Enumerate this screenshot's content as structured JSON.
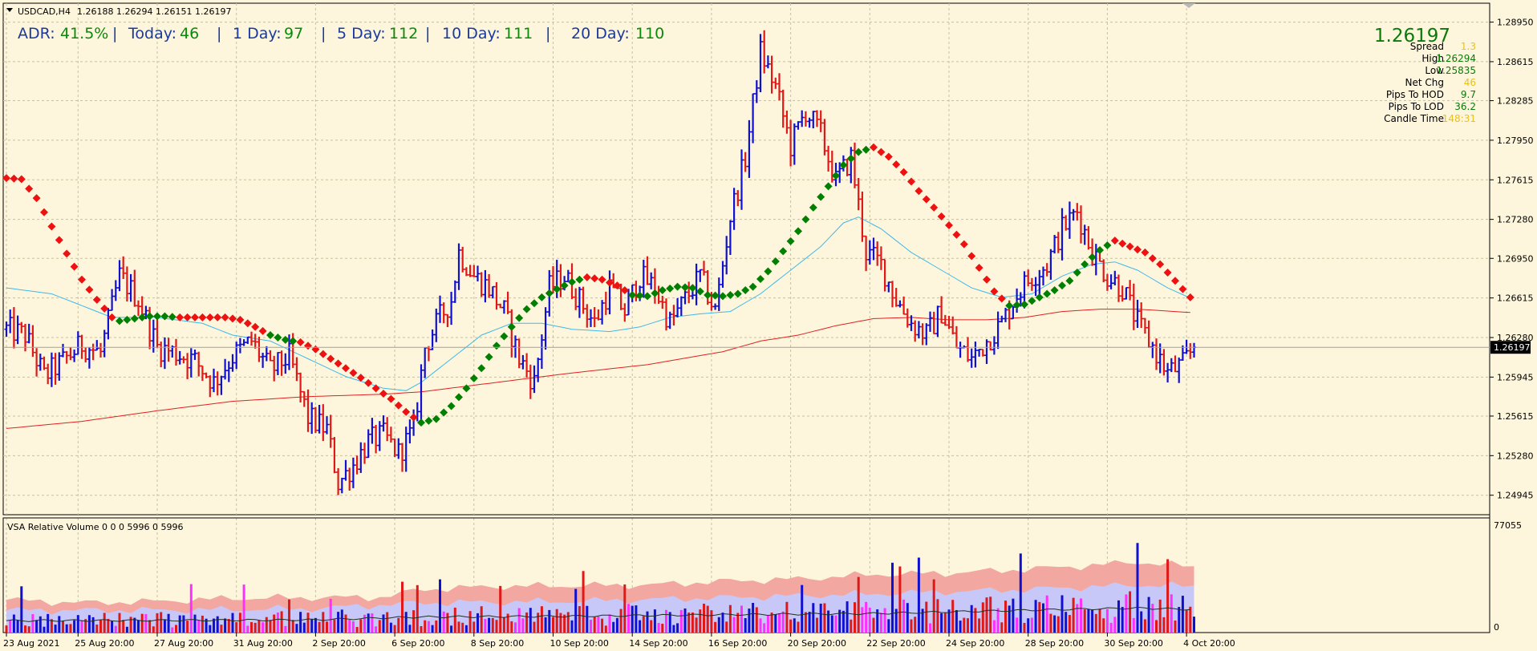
{
  "header": {
    "symbol": "USDCAD,H4",
    "ohlc": "1.26188 1.26294 1.26151 1.26197"
  },
  "adr_bar": {
    "adr_label": "ADR:",
    "adr_value": "41.5%",
    "today_label": "Today:",
    "today_value": "46",
    "d1_label": "1 Day:",
    "d1_value": "97",
    "d5_label": "5 Day:",
    "d5_value": "112",
    "d10_label": "10 Day:",
    "d10_value": "111",
    "d20_label": "20 Day:",
    "d20_value": "110"
  },
  "info_panel": {
    "bid": "1.26197",
    "rows": [
      {
        "label": "Spread",
        "value": "1.3",
        "color": "#e8c020"
      },
      {
        "label": "High",
        "value": "1.26294",
        "color": "#0a7a0a"
      },
      {
        "label": "Low",
        "value": "1.25835",
        "color": "#0a7a0a"
      },
      {
        "label": "Net Chg",
        "value": "46",
        "color": "#e8c020"
      },
      {
        "label": "Pips To HOD",
        "value": "9.7",
        "color": "#0a7a0a"
      },
      {
        "label": "Pips To LOD",
        "value": "36.2",
        "color": "#0a7a0a"
      },
      {
        "label": "Candle Time",
        "value": "148:31",
        "color": "#e8c020"
      }
    ]
  },
  "volume_panel": {
    "title": "VSA Relative Volume 0 0 0 5996 0 5996",
    "max_label": "77055",
    "zero_label": "0"
  },
  "colors": {
    "background": "#fdf6dc",
    "grid": "#c8c0a0",
    "bull_bar": "#1010d0",
    "bear_bar": "#e01818",
    "ma_fast": "#40b8e8",
    "ma_slow": "#e02020",
    "step_up": "#008000",
    "step_down": "#ee1111",
    "vol_band_high": "#f2a8a0",
    "vol_band_mid": "#c8c8f8",
    "vol_bar_magenta": "#ff30ff",
    "vol_avg_line": "#203020",
    "accent_text": "#1a3aa0",
    "accent_value": "#0a8a0a"
  },
  "chart_data": [
    {
      "type": "ohlc",
      "symbol": "USDCAD",
      "timeframe": "H4",
      "current_price": 1.26197,
      "ylim": [
        1.2478,
        1.2911
      ],
      "y_ticks": [
        1.2895,
        1.28615,
        1.28285,
        1.2795,
        1.27615,
        1.2728,
        1.2695,
        1.26615,
        1.2628,
        1.25945,
        1.25615,
        1.2528,
        1.24945
      ],
      "x_tick_labels": [
        "23 Aug 2021",
        "25 Aug 20:00",
        "27 Aug 20:00",
        "31 Aug 20:00",
        "2 Sep 20:00",
        "6 Sep 20:00",
        "8 Sep 20:00",
        "10 Sep 20:00",
        "14 Sep 20:00",
        "16 Sep 20:00",
        "20 Sep 20:00",
        "22 Sep 20:00",
        "24 Sep 20:00",
        "28 Sep 20:00",
        "30 Sep 20:00",
        "4 Oct 20:00"
      ],
      "x_tick_bar_index": [
        0,
        19,
        40,
        61,
        82,
        103,
        124,
        145,
        166,
        187,
        208,
        229,
        250,
        271,
        292,
        313
      ],
      "trend_path": [
        [
          0,
          1.2763
        ],
        [
          4,
          1.2762
        ],
        [
          8,
          1.2746
        ],
        [
          12,
          1.2722
        ],
        [
          16,
          1.2699
        ],
        [
          20,
          1.2677
        ],
        [
          24,
          1.266
        ],
        [
          28,
          1.2645
        ],
        [
          30,
          1.2642
        ],
        [
          34,
          1.2644
        ],
        [
          38,
          1.2646
        ],
        [
          42,
          1.2646
        ],
        [
          46,
          1.2645
        ],
        [
          50,
          1.2645
        ],
        [
          54,
          1.2645
        ],
        [
          58,
          1.2645
        ],
        [
          62,
          1.2643
        ],
        [
          66,
          1.2637
        ],
        [
          70,
          1.263
        ],
        [
          74,
          1.2626
        ],
        [
          78,
          1.2624
        ],
        [
          82,
          1.2618
        ],
        [
          86,
          1.261
        ],
        [
          90,
          1.2602
        ],
        [
          94,
          1.2594
        ],
        [
          98,
          1.2585
        ],
        [
          102,
          1.2576
        ],
        [
          106,
          1.2565
        ],
        [
          110,
          1.2556
        ],
        [
          114,
          1.2559
        ],
        [
          118,
          1.257
        ],
        [
          122,
          1.2585
        ],
        [
          126,
          1.2602
        ],
        [
          130,
          1.2621
        ],
        [
          134,
          1.2637
        ],
        [
          138,
          1.2652
        ],
        [
          142,
          1.2662
        ],
        [
          146,
          1.2669
        ],
        [
          150,
          1.2675
        ],
        [
          154,
          1.2679
        ],
        [
          158,
          1.2677
        ],
        [
          162,
          1.2672
        ],
        [
          166,
          1.2664
        ],
        [
          170,
          1.2663
        ],
        [
          174,
          1.2668
        ],
        [
          178,
          1.2671
        ],
        [
          182,
          1.267
        ],
        [
          186,
          1.2664
        ],
        [
          190,
          1.2663
        ],
        [
          194,
          1.2665
        ],
        [
          198,
          1.2671
        ],
        [
          202,
          1.2684
        ],
        [
          206,
          1.2701
        ],
        [
          210,
          1.2718
        ],
        [
          214,
          1.2738
        ],
        [
          218,
          1.2756
        ],
        [
          222,
          1.2774
        ],
        [
          226,
          1.2785
        ],
        [
          230,
          1.2789
        ],
        [
          234,
          1.2781
        ],
        [
          238,
          1.2768
        ],
        [
          242,
          1.2752
        ],
        [
          246,
          1.2738
        ],
        [
          250,
          1.2723
        ],
        [
          254,
          1.2707
        ],
        [
          258,
          1.2687
        ],
        [
          262,
          1.2667
        ],
        [
          266,
          1.2655
        ],
        [
          270,
          1.2656
        ],
        [
          274,
          1.2662
        ],
        [
          278,
          1.2668
        ],
        [
          282,
          1.2676
        ],
        [
          286,
          1.269
        ],
        [
          290,
          1.2702
        ],
        [
          294,
          1.271
        ],
        [
          298,
          1.2705
        ],
        [
          302,
          1.27
        ],
        [
          306,
          1.269
        ],
        [
          310,
          1.2676
        ],
        [
          314,
          1.2662
        ]
      ],
      "trend_direction_changes": [
        {
          "from_bar": 0,
          "to_bar": 30,
          "direction": "down"
        },
        {
          "from_bar": 30,
          "to_bar": 46,
          "direction": "up"
        },
        {
          "from_bar": 46,
          "to_bar": 70,
          "direction": "down"
        },
        {
          "from_bar": 70,
          "to_bar": 78,
          "direction": "up"
        },
        {
          "from_bar": 78,
          "to_bar": 110,
          "direction": "down"
        },
        {
          "from_bar": 110,
          "to_bar": 154,
          "direction": "up"
        },
        {
          "from_bar": 154,
          "to_bar": 166,
          "direction": "down"
        },
        {
          "from_bar": 166,
          "to_bar": 230,
          "direction": "up"
        },
        {
          "from_bar": 230,
          "to_bar": 266,
          "direction": "down"
        },
        {
          "from_bar": 266,
          "to_bar": 294,
          "direction": "up"
        },
        {
          "from_bar": 294,
          "to_bar": 315,
          "direction": "down"
        }
      ],
      "close_path": [
        [
          0,
          1.2635
        ],
        [
          5,
          1.263
        ],
        [
          10,
          1.2595
        ],
        [
          15,
          1.2608
        ],
        [
          20,
          1.2622
        ],
        [
          25,
          1.2615
        ],
        [
          30,
          1.268
        ],
        [
          35,
          1.266
        ],
        [
          40,
          1.262
        ],
        [
          45,
          1.2615
        ],
        [
          50,
          1.2608
        ],
        [
          55,
          1.259
        ],
        [
          60,
          1.2612
        ],
        [
          65,
          1.2625
        ],
        [
          70,
          1.26
        ],
        [
          75,
          1.2612
        ],
        [
          80,
          1.256
        ],
        [
          85,
          1.255
        ],
        [
          88,
          1.2505
        ],
        [
          92,
          1.252
        ],
        [
          96,
          1.254
        ],
        [
          100,
          1.2545
        ],
        [
          104,
          1.253
        ],
        [
          108,
          1.255
        ],
        [
          111,
          1.262
        ],
        [
          115,
          1.2645
        ],
        [
          118,
          1.266
        ],
        [
          120,
          1.27
        ],
        [
          124,
          1.268
        ],
        [
          128,
          1.267
        ],
        [
          132,
          1.265
        ],
        [
          136,
          1.261
        ],
        [
          140,
          1.259
        ],
        [
          144,
          1.267
        ],
        [
          148,
          1.268
        ],
        [
          152,
          1.266
        ],
        [
          156,
          1.264
        ],
        [
          160,
          1.267
        ],
        [
          164,
          1.265
        ],
        [
          168,
          1.268
        ],
        [
          172,
          1.267
        ],
        [
          176,
          1.264
        ],
        [
          180,
          1.266
        ],
        [
          184,
          1.268
        ],
        [
          188,
          1.265
        ],
        [
          192,
          1.273
        ],
        [
          196,
          1.278
        ],
        [
          200,
          1.287
        ],
        [
          204,
          1.284
        ],
        [
          208,
          1.279
        ],
        [
          212,
          1.282
        ],
        [
          216,
          1.28
        ],
        [
          220,
          1.276
        ],
        [
          224,
          1.278
        ],
        [
          228,
          1.27
        ],
        [
          232,
          1.269
        ],
        [
          236,
          1.266
        ],
        [
          240,
          1.264
        ],
        [
          244,
          1.263
        ],
        [
          248,
          1.265
        ],
        [
          252,
          1.262
        ],
        [
          256,
          1.261
        ],
        [
          260,
          1.2625
        ],
        [
          264,
          1.264
        ],
        [
          268,
          1.2665
        ],
        [
          272,
          1.268
        ],
        [
          276,
          1.269
        ],
        [
          280,
          1.272
        ],
        [
          284,
          1.2735
        ],
        [
          288,
          1.27
        ],
        [
          292,
          1.268
        ],
        [
          296,
          1.267
        ],
        [
          300,
          1.264
        ],
        [
          304,
          1.262
        ],
        [
          308,
          1.2598
        ],
        [
          312,
          1.2605
        ],
        [
          315,
          1.26197
        ]
      ],
      "ma_fast_path": [
        [
          0,
          1.267
        ],
        [
          12,
          1.2665
        ],
        [
          20,
          1.2655
        ],
        [
          28,
          1.2645
        ],
        [
          40,
          1.2645
        ],
        [
          52,
          1.264
        ],
        [
          60,
          1.263
        ],
        [
          70,
          1.2625
        ],
        [
          80,
          1.261
        ],
        [
          90,
          1.2595
        ],
        [
          100,
          1.2585
        ],
        [
          106,
          1.2583
        ],
        [
          110,
          1.259
        ],
        [
          118,
          1.261
        ],
        [
          126,
          1.263
        ],
        [
          134,
          1.264
        ],
        [
          142,
          1.264
        ],
        [
          150,
          1.2635
        ],
        [
          160,
          1.2633
        ],
        [
          168,
          1.2637
        ],
        [
          176,
          1.2645
        ],
        [
          184,
          1.2648
        ],
        [
          192,
          1.265
        ],
        [
          200,
          1.2665
        ],
        [
          208,
          1.2685
        ],
        [
          216,
          1.2705
        ],
        [
          222,
          1.2725
        ],
        [
          226,
          1.273
        ],
        [
          232,
          1.272
        ],
        [
          240,
          1.27
        ],
        [
          248,
          1.2685
        ],
        [
          256,
          1.267
        ],
        [
          264,
          1.2662
        ],
        [
          272,
          1.2665
        ],
        [
          280,
          1.268
        ],
        [
          288,
          1.269
        ],
        [
          294,
          1.2692
        ],
        [
          300,
          1.2685
        ],
        [
          308,
          1.267
        ],
        [
          315,
          1.266
        ]
      ],
      "ma_slow_path": [
        [
          0,
          1.2551
        ],
        [
          20,
          1.2557
        ],
        [
          40,
          1.2566
        ],
        [
          60,
          1.2574
        ],
        [
          80,
          1.2578
        ],
        [
          100,
          1.258
        ],
        [
          110,
          1.2582
        ],
        [
          130,
          1.259
        ],
        [
          150,
          1.2598
        ],
        [
          170,
          1.2605
        ],
        [
          190,
          1.2616
        ],
        [
          200,
          1.2625
        ],
        [
          210,
          1.263
        ],
        [
          220,
          1.2638
        ],
        [
          230,
          1.2644
        ],
        [
          240,
          1.2645
        ],
        [
          250,
          1.2643
        ],
        [
          260,
          1.2643
        ],
        [
          270,
          1.2645
        ],
        [
          280,
          1.265
        ],
        [
          290,
          1.2652
        ],
        [
          300,
          1.2652
        ],
        [
          310,
          1.265
        ],
        [
          315,
          1.2649
        ]
      ]
    },
    {
      "type": "bar",
      "title": "VSA Relative Volume 0 0 0 5996 0 5996",
      "ylim": [
        0,
        77055
      ],
      "band_high_path": [
        [
          0,
          22000
        ],
        [
          20,
          20000
        ],
        [
          40,
          21000
        ],
        [
          60,
          23000
        ],
        [
          80,
          23500
        ],
        [
          100,
          23800
        ],
        [
          110,
          29000
        ],
        [
          130,
          31000
        ],
        [
          150,
          31500
        ],
        [
          170,
          32000
        ],
        [
          190,
          34500
        ],
        [
          210,
          36000
        ],
        [
          230,
          39000
        ],
        [
          250,
          40000
        ],
        [
          270,
          42500
        ],
        [
          290,
          45500
        ],
        [
          300,
          47500
        ],
        [
          315,
          44000
        ]
      ],
      "band_mid_path": [
        [
          0,
          15000
        ],
        [
          40,
          15000
        ],
        [
          80,
          16000
        ],
        [
          110,
          20000
        ],
        [
          150,
          21000
        ],
        [
          190,
          23500
        ],
        [
          230,
          26000
        ],
        [
          270,
          29000
        ],
        [
          300,
          32000
        ],
        [
          315,
          31000
        ]
      ],
      "avg_line_path": [
        [
          0,
          8000
        ],
        [
          40,
          8200
        ],
        [
          80,
          8500
        ],
        [
          110,
          10500
        ],
        [
          150,
          11000
        ],
        [
          190,
          12000
        ],
        [
          230,
          12800
        ],
        [
          270,
          15000
        ],
        [
          300,
          16500
        ],
        [
          315,
          15500
        ]
      ]
    }
  ]
}
